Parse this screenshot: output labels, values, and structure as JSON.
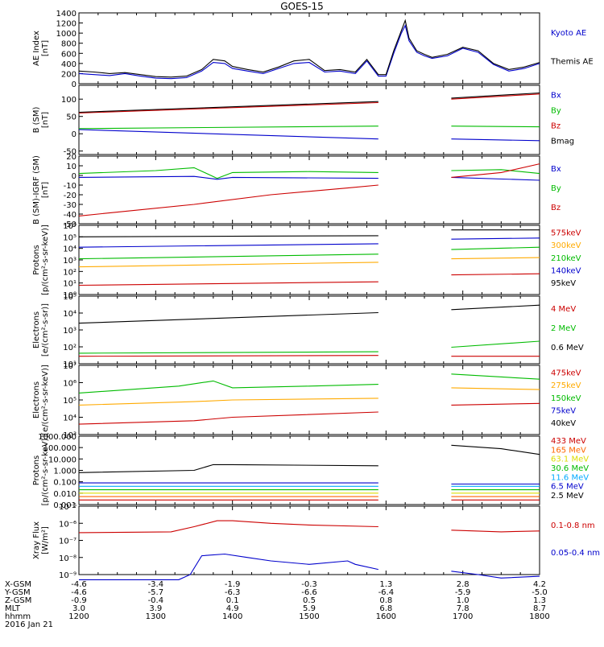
{
  "title": "GOES-15",
  "chart_data": [
    {
      "type": "line",
      "ylabel": [
        "AE Index",
        "[nT]"
      ],
      "ylim": [
        0,
        1400
      ],
      "yticks": [
        "0",
        "200",
        "400",
        "600",
        "800",
        "1000",
        "1200",
        "1400"
      ],
      "legend": [
        {
          "label": "Kyoto AE",
          "color": "#0000cc"
        },
        {
          "label": "Themis AE",
          "color": "#000000"
        }
      ],
      "series": [
        {
          "name": "Kyoto AE",
          "color": "#0000cc",
          "x": [
            12.0,
            12.2,
            12.4,
            12.6,
            12.8,
            13.0,
            13.2,
            13.4,
            13.6,
            13.75,
            13.9,
            14.0,
            14.2,
            14.4,
            14.6,
            14.8,
            15.0,
            15.2,
            15.4,
            15.6,
            15.75,
            15.9,
            16.0,
            16.1,
            16.2,
            16.25,
            16.3,
            16.4,
            16.5,
            16.6,
            16.8,
            17.0,
            17.2,
            17.4,
            17.6,
            17.8,
            18.0
          ],
          "y": [
            200,
            180,
            160,
            200,
            150,
            110,
            100,
            120,
            250,
            420,
            400,
            300,
            250,
            200,
            300,
            400,
            420,
            230,
            250,
            200,
            450,
            150,
            150,
            600,
            1000,
            1150,
            850,
            620,
            550,
            500,
            550,
            700,
            620,
            380,
            250,
            300,
            400
          ]
        },
        {
          "name": "Themis AE",
          "color": "#000000",
          "x": [
            12.0,
            12.2,
            12.4,
            12.6,
            12.8,
            13.0,
            13.2,
            13.4,
            13.6,
            13.75,
            13.9,
            14.0,
            14.2,
            14.4,
            14.6,
            14.8,
            15.0,
            15.2,
            15.4,
            15.6,
            15.75,
            15.9,
            16.0,
            16.1,
            16.2,
            16.25,
            16.3,
            16.4,
            16.5,
            16.6,
            16.8,
            17.0,
            17.2,
            17.4,
            17.6,
            17.8,
            18.0
          ],
          "y": [
            250,
            230,
            200,
            220,
            180,
            140,
            130,
            150,
            280,
            480,
            450,
            340,
            280,
            230,
            330,
            450,
            480,
            260,
            280,
            230,
            480,
            180,
            180,
            650,
            1050,
            1250,
            900,
            650,
            580,
            520,
            580,
            720,
            650,
            400,
            280,
            330,
            420
          ]
        }
      ]
    },
    {
      "type": "line",
      "ylabel": [
        "B (SM)",
        "[nT]"
      ],
      "ylim": [
        -60,
        140
      ],
      "yticks": [
        "-50",
        "0",
        "50",
        "100"
      ],
      "legend": [
        {
          "label": "Bx",
          "color": "#0000cc"
        },
        {
          "label": "By",
          "color": "#00bb00"
        },
        {
          "label": "Bz",
          "color": "#cc0000"
        },
        {
          "label": "Bmag",
          "color": "#000000"
        }
      ],
      "series": [
        {
          "name": "Bx",
          "color": "#0000cc",
          "x": [
            12.0,
            15.9
          ],
          "y": [
            12,
            -15
          ],
          "x2": [
            16.85,
            18.0
          ],
          "y2": [
            -15,
            -20
          ]
        },
        {
          "name": "By",
          "color": "#00bb00",
          "x": [
            12.0,
            15.9
          ],
          "y": [
            15,
            22
          ],
          "x2": [
            16.85,
            18.0
          ],
          "y2": [
            22,
            20
          ]
        },
        {
          "name": "Bz",
          "color": "#cc0000",
          "x": [
            12.0,
            15.9
          ],
          "y": [
            60,
            90
          ],
          "x2": [
            16.85,
            18.0
          ],
          "y2": [
            100,
            115
          ]
        },
        {
          "name": "Bmag",
          "color": "#000000",
          "x": [
            12.0,
            15.9
          ],
          "y": [
            62,
            93
          ],
          "x2": [
            16.85,
            18.0
          ],
          "y2": [
            103,
            118
          ]
        }
      ]
    },
    {
      "type": "line",
      "ylabel": [
        "B (SM)-IGRF (SM)",
        "[nT]"
      ],
      "ylim": [
        -50,
        20
      ],
      "yticks": [
        "-50",
        "-40",
        "-30",
        "-20",
        "-10",
        "0",
        "10",
        "20"
      ],
      "legend": [
        {
          "label": "Bx",
          "color": "#0000cc"
        },
        {
          "label": "By",
          "color": "#00bb00"
        },
        {
          "label": "Bz",
          "color": "#cc0000"
        }
      ],
      "series": [
        {
          "name": "Bx",
          "color": "#0000cc",
          "x": [
            12.0,
            13.5,
            13.8,
            14.0,
            15.9
          ],
          "y": [
            -2,
            -1,
            -4,
            -2,
            -3
          ],
          "x2": [
            16.85,
            18.0
          ],
          "y2": [
            -2,
            -5
          ]
        },
        {
          "name": "By",
          "color": "#00bb00",
          "x": [
            12.0,
            13.0,
            13.5,
            13.8,
            14.0,
            15.0,
            15.9
          ],
          "y": [
            2,
            5,
            8,
            -3,
            3,
            4,
            3
          ],
          "x2": [
            16.85,
            17.5,
            18.0
          ],
          "y2": [
            5,
            6,
            2
          ]
        },
        {
          "name": "Bz",
          "color": "#cc0000",
          "x": [
            12.0,
            12.5,
            13.5,
            14.5,
            15.5,
            15.9
          ],
          "y": [
            -42,
            -38,
            -30,
            -20,
            -13,
            -10
          ],
          "x2": [
            16.85,
            17.5,
            18.0
          ],
          "y2": [
            -2,
            3,
            12
          ]
        }
      ]
    },
    {
      "type": "line",
      "scale": "log",
      "ylabel": [
        "Protons",
        "[p/(cm²-s-sr-keV)]"
      ],
      "ylim": [
        0,
        6
      ],
      "yticks": [
        "10⁰",
        "10¹",
        "10²",
        "10³",
        "10⁴",
        "10⁵",
        "10⁶"
      ],
      "legend": [
        {
          "label": "575keV",
          "color": "#cc0000"
        },
        {
          "label": "300keV",
          "color": "#ffaa00"
        },
        {
          "label": "210keV",
          "color": "#00bb00"
        },
        {
          "label": "140keV",
          "color": "#0000cc"
        },
        {
          "label": "95keV",
          "color": "#000000"
        }
      ],
      "series": [
        {
          "name": "95keV",
          "color": "#000000",
          "x": [
            12.0,
            15.9
          ],
          "y": [
            5.0,
            5.1
          ],
          "x2": [
            16.85,
            18.0
          ],
          "y2": [
            5.6,
            5.6
          ]
        },
        {
          "name": "140keV",
          "color": "#0000cc",
          "x": [
            12.0,
            15.9
          ],
          "y": [
            4.1,
            4.4
          ],
          "x2": [
            16.85,
            18.0
          ],
          "y2": [
            4.8,
            4.9
          ]
        },
        {
          "name": "210keV",
          "color": "#00bb00",
          "x": [
            12.0,
            15.9
          ],
          "y": [
            3.1,
            3.5
          ],
          "x2": [
            16.85,
            18.0
          ],
          "y2": [
            3.9,
            4.1
          ]
        },
        {
          "name": "300keV",
          "color": "#ffaa00",
          "x": [
            12.0,
            15.9
          ],
          "y": [
            2.4,
            2.8
          ],
          "x2": [
            16.85,
            18.0
          ],
          "y2": [
            3.1,
            3.2
          ]
        },
        {
          "name": "575keV",
          "color": "#cc0000",
          "x": [
            12.0,
            15.9
          ],
          "y": [
            0.8,
            1.1
          ],
          "x2": [
            16.85,
            18.0
          ],
          "y2": [
            1.7,
            1.8
          ]
        }
      ]
    },
    {
      "type": "line",
      "scale": "log",
      "ylabel": [
        "Electrons",
        "[e/(cm²-s-sr)]"
      ],
      "ylim": [
        0.5,
        5
      ],
      "yticks": [
        "10¹",
        "10²",
        "10³",
        "10⁴",
        "10⁵"
      ],
      "legend": [
        {
          "label": "4 MeV",
          "color": "#cc0000"
        },
        {
          "label": "2 MeV",
          "color": "#00bb00"
        },
        {
          "label": "0.6 MeV",
          "color": "#000000"
        }
      ],
      "series": [
        {
          "name": "0.6 MeV",
          "color": "#000000",
          "x": [
            12.0,
            15.9
          ],
          "y": [
            3.2,
            3.9
          ],
          "x2": [
            16.85,
            18.0
          ],
          "y2": [
            4.1,
            4.4
          ]
        },
        {
          "name": "2 MeV",
          "color": "#00bb00",
          "x": [
            12.0,
            15.9
          ],
          "y": [
            1.2,
            1.3
          ],
          "x2": [
            16.85,
            18.0
          ],
          "y2": [
            1.6,
            2.0
          ]
        },
        {
          "name": "4 MeV",
          "color": "#cc0000",
          "x": [
            12.0,
            15.9
          ],
          "y": [
            1.0,
            1.05
          ],
          "x2": [
            16.85,
            18.0
          ],
          "y2": [
            1.0,
            1.0
          ]
        }
      ]
    },
    {
      "type": "line",
      "scale": "log",
      "ylabel": [
        "Electrons",
        "[e/(cm²-s-sr-keV)]"
      ],
      "ylim": [
        3,
        7
      ],
      "yticks": [
        "10³",
        "10⁴",
        "10⁵",
        "10⁶",
        "10⁷"
      ],
      "legend": [
        {
          "label": "475keV",
          "color": "#cc0000"
        },
        {
          "label": "275keV",
          "color": "#ffaa00"
        },
        {
          "label": "150keV",
          "color": "#00bb00"
        },
        {
          "label": "75keV",
          "color": "#0000cc"
        },
        {
          "label": "40keV",
          "color": "#000000"
        }
      ],
      "series": [
        {
          "name": "150keV",
          "color": "#00bb00",
          "x": [
            12.0,
            13.3,
            13.75,
            14.0,
            15.0,
            15.9
          ],
          "y": [
            5.4,
            5.8,
            6.1,
            5.7,
            5.8,
            5.9
          ],
          "x2": [
            16.85,
            18.0
          ],
          "y2": [
            6.5,
            6.2
          ]
        },
        {
          "name": "275keV",
          "color": "#ffaa00",
          "x": [
            12.0,
            13.5,
            14.0,
            15.9
          ],
          "y": [
            4.7,
            4.9,
            5.0,
            5.1
          ],
          "x2": [
            16.85,
            18.0
          ],
          "y2": [
            5.7,
            5.6
          ]
        },
        {
          "name": "475keV",
          "color": "#cc0000",
          "x": [
            12.0,
            13.5,
            14.0,
            15.9
          ],
          "y": [
            3.6,
            3.8,
            4.0,
            4.3
          ],
          "x2": [
            16.85,
            18.0
          ],
          "y2": [
            4.7,
            4.8
          ]
        }
      ]
    },
    {
      "type": "line",
      "scale": "log",
      "ylabel": [
        "Protons",
        "[p/(cm²-s-sr-keV)]"
      ],
      "ylim": [
        -3,
        3
      ],
      "yticks": [
        "0.001",
        "0.010",
        "0.100",
        "1.000",
        "10.000",
        "100.000",
        "1000.000"
      ],
      "legend": [
        {
          "label": "433 MeV",
          "color": "#cc0000"
        },
        {
          "label": "165 MeV",
          "color": "#ff6600"
        },
        {
          "label": "63.1 MeV",
          "color": "#dddd00"
        },
        {
          "label": "30.6 MeV",
          "color": "#00bb00"
        },
        {
          "label": "11.6 MeV",
          "color": "#00aaff"
        },
        {
          "label": "6.5 MeV",
          "color": "#0000cc"
        },
        {
          "label": "2.5 MeV",
          "color": "#000000"
        }
      ],
      "series": [
        {
          "name": "2.5 MeV",
          "color": "#000000",
          "x": [
            12.0,
            13.5,
            13.75,
            14.0,
            15.9
          ],
          "y": [
            -0.2,
            0.0,
            0.5,
            0.5,
            0.4
          ],
          "x2": [
            16.85,
            17.5,
            18.0
          ],
          "y2": [
            2.2,
            1.9,
            1.4
          ]
        },
        {
          "name": "6.5 MeV",
          "color": "#0000cc",
          "x": [
            12.0,
            15.9
          ],
          "y": [
            -1.1,
            -1.1
          ],
          "x2": [
            16.85,
            18.0
          ],
          "y2": [
            -1.2,
            -1.2
          ]
        },
        {
          "name": "11.6 MeV",
          "color": "#00aaff",
          "x": [
            12.0,
            15.9
          ],
          "y": [
            -1.4,
            -1.4
          ],
          "x2": [
            16.85,
            18.0
          ],
          "y2": [
            -1.4,
            -1.4
          ]
        },
        {
          "name": "30.6 MeV",
          "color": "#00bb00",
          "x": [
            12.0,
            15.9
          ],
          "y": [
            -1.7,
            -1.7
          ],
          "x2": [
            16.85,
            18.0
          ],
          "y2": [
            -1.7,
            -1.7
          ]
        },
        {
          "name": "63.1 MeV",
          "color": "#dddd00",
          "x": [
            12.0,
            15.9
          ],
          "y": [
            -2.0,
            -2.0
          ],
          "x2": [
            16.85,
            18.0
          ],
          "y2": [
            -2.0,
            -2.0
          ]
        },
        {
          "name": "165 MeV",
          "color": "#ff6600",
          "x": [
            12.0,
            15.9
          ],
          "y": [
            -2.3,
            -2.3
          ],
          "x2": [
            16.85,
            18.0
          ],
          "y2": [
            -2.3,
            -2.3
          ]
        },
        {
          "name": "433 MeV",
          "color": "#cc0000",
          "x": [
            12.0,
            15.9
          ],
          "y": [
            -2.6,
            -2.6
          ],
          "x2": [
            16.85,
            18.0
          ],
          "y2": [
            -2.6,
            -2.6
          ]
        }
      ]
    },
    {
      "type": "line",
      "scale": "log",
      "ylabel": [
        "Xray Flux",
        "[W/m²]"
      ],
      "ylim": [
        -9,
        -5
      ],
      "yticks": [
        "10⁻⁹",
        "10⁻⁸",
        "10⁻⁷",
        "10⁻⁶",
        "10⁻⁵"
      ],
      "legend": [
        {
          "label": "0.1-0.8 nm",
          "color": "#cc0000"
        },
        {
          "label": "0.05-0.4 nm",
          "color": "#0000cc"
        }
      ],
      "series": [
        {
          "name": "0.1-0.8 nm",
          "color": "#cc0000",
          "x": [
            12.0,
            13.2,
            13.5,
            13.8,
            14.0,
            14.5,
            15.0,
            15.9
          ],
          "y": [
            -6.55,
            -6.5,
            -6.2,
            -5.85,
            -5.85,
            -6.0,
            -6.1,
            -6.2
          ],
          "x2": [
            16.85,
            17.5,
            18.0
          ],
          "y2": [
            -6.4,
            -6.5,
            -6.45
          ]
        },
        {
          "name": "0.05-0.4 nm",
          "color": "#0000cc",
          "x": [
            12.0,
            13.3,
            13.45,
            13.6,
            13.9,
            14.2,
            14.5,
            15.0,
            15.5,
            15.6,
            15.9
          ],
          "y": [
            -9.3,
            -9.3,
            -9.0,
            -7.9,
            -7.8,
            -8.0,
            -8.2,
            -8.4,
            -8.2,
            -8.4,
            -8.7
          ],
          "x2": [
            16.85,
            17.2,
            17.5,
            18.0
          ],
          "y2": [
            -8.8,
            -9.0,
            -9.2,
            -9.1
          ]
        }
      ]
    }
  ],
  "x_axis": {
    "xlim": [
      12,
      18
    ],
    "tick_hours": [
      12,
      13,
      14,
      15,
      16,
      17,
      18
    ],
    "row_labels": [
      "X-GSM",
      "Y-GSM",
      "Z-GSM",
      "MLT",
      "hhmm",
      "2016 Jan 21"
    ],
    "rows": [
      [
        "-4.6",
        "-3.4",
        "-1.9",
        "-0.3",
        "1.3",
        "2.8",
        "4.2"
      ],
      [
        "-4.6",
        "-5.7",
        "-6.3",
        "-6.6",
        "-6.4",
        "-5.9",
        "-5.0"
      ],
      [
        "-0.9",
        "-0.4",
        "0.1",
        "0.5",
        "0.8",
        "1.0",
        "1.3"
      ],
      [
        "3.0",
        "3.9",
        "4.9",
        "5.9",
        "6.8",
        "7.8",
        "8.7"
      ],
      [
        "1200",
        "1300",
        "1400",
        "1500",
        "1600",
        "1700",
        "1800"
      ]
    ]
  }
}
